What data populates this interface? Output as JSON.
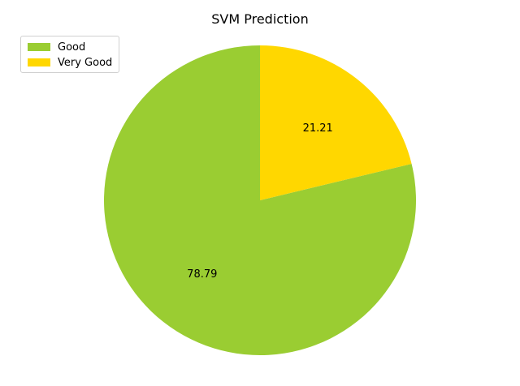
{
  "chart_data": {
    "type": "pie",
    "title": "SVM Prediction",
    "categories": [
      "Good",
      "Very Good"
    ],
    "values": [
      78.79,
      21.21
    ],
    "labels": [
      "78.79",
      "21.21"
    ],
    "colors": [
      "#9acd32",
      "#ffd700"
    ],
    "legend_position": "top-left"
  }
}
